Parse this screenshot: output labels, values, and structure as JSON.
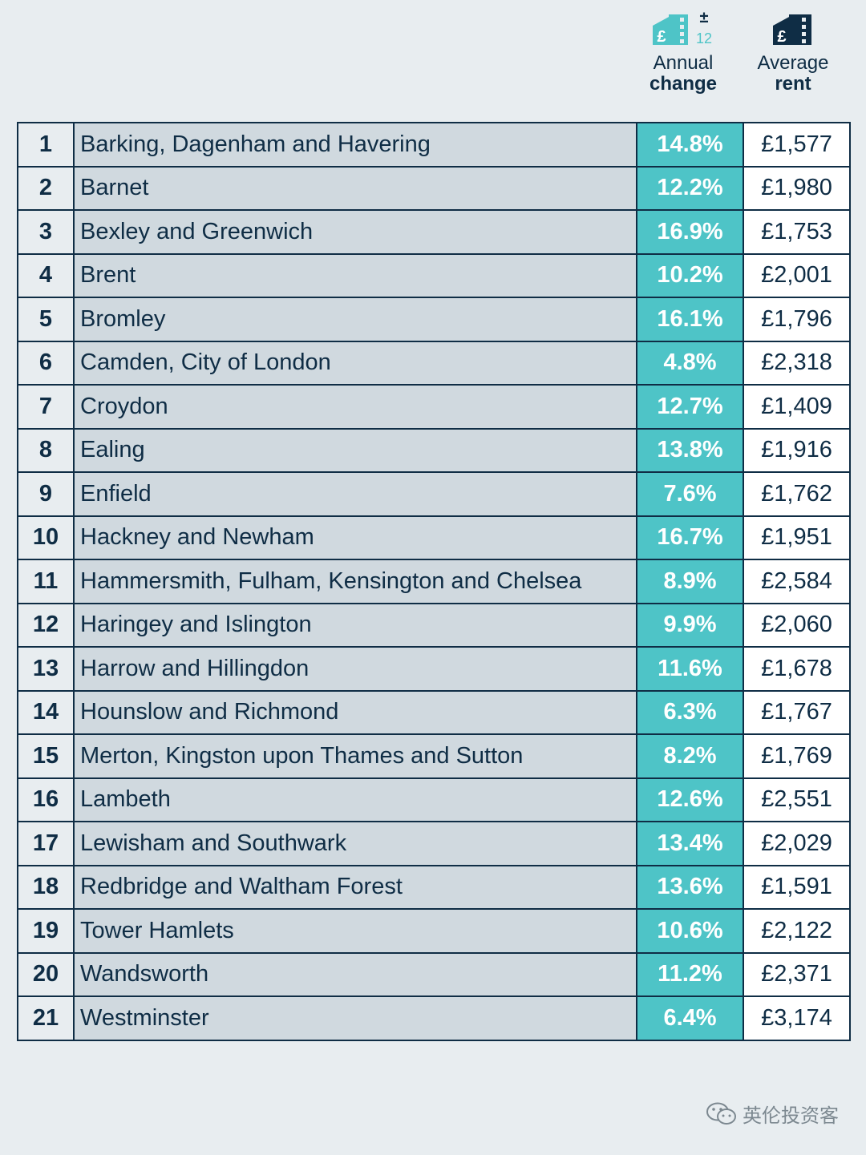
{
  "header": {
    "annual_change": {
      "line1": "Annual",
      "line2": "change",
      "icon_plus_minus": "±",
      "icon_months": "12",
      "icon": "building-pound-change-icon"
    },
    "average_rent": {
      "line1": "Average",
      "line2": "rent",
      "icon": "building-pound-icon"
    }
  },
  "colors": {
    "teal": "#4ec4c7",
    "navy": "#0f2d45",
    "row_grey": "#d0d9df",
    "background": "#e8edf0"
  },
  "rows": [
    {
      "rank": "1",
      "area": "Barking, Dagenham and Havering",
      "change": "14.8%",
      "rent": "£1,577"
    },
    {
      "rank": "2",
      "area": "Barnet",
      "change": "12.2%",
      "rent": "£1,980"
    },
    {
      "rank": "3",
      "area": "Bexley and Greenwich",
      "change": "16.9%",
      "rent": "£1,753"
    },
    {
      "rank": "4",
      "area": "Brent",
      "change": "10.2%",
      "rent": "£2,001"
    },
    {
      "rank": "5",
      "area": "Bromley",
      "change": "16.1%",
      "rent": "£1,796"
    },
    {
      "rank": "6",
      "area": "Camden, City of London",
      "change": "4.8%",
      "rent": "£2,318"
    },
    {
      "rank": "7",
      "area": "Croydon",
      "change": "12.7%",
      "rent": "£1,409"
    },
    {
      "rank": "8",
      "area": "Ealing",
      "change": "13.8%",
      "rent": "£1,916"
    },
    {
      "rank": "9",
      "area": "Enfield",
      "change": "7.6%",
      "rent": "£1,762"
    },
    {
      "rank": "10",
      "area": "Hackney and Newham",
      "change": "16.7%",
      "rent": "£1,951"
    },
    {
      "rank": "11",
      "area": "Hammersmith, Fulham, Kensington and Chelsea",
      "change": "8.9%",
      "rent": "£2,584"
    },
    {
      "rank": "12",
      "area": "Haringey and Islington",
      "change": "9.9%",
      "rent": "£2,060"
    },
    {
      "rank": "13",
      "area": "Harrow and Hillingdon",
      "change": "11.6%",
      "rent": "£1,678"
    },
    {
      "rank": "14",
      "area": "Hounslow and Richmond",
      "change": "6.3%",
      "rent": "£1,767"
    },
    {
      "rank": "15",
      "area": "Merton, Kingston upon Thames and Sutton",
      "change": "8.2%",
      "rent": "£1,769"
    },
    {
      "rank": "16",
      "area": "Lambeth",
      "change": "12.6%",
      "rent": "£2,551"
    },
    {
      "rank": "17",
      "area": "Lewisham and Southwark",
      "change": "13.4%",
      "rent": "£2,029"
    },
    {
      "rank": "18",
      "area": "Redbridge and Waltham Forest",
      "change": "13.6%",
      "rent": "£1,591"
    },
    {
      "rank": "19",
      "area": "Tower Hamlets",
      "change": "10.6%",
      "rent": "£2,122"
    },
    {
      "rank": "20",
      "area": "Wandsworth",
      "change": "11.2%",
      "rent": "£2,371"
    },
    {
      "rank": "21",
      "area": "Westminster",
      "change": "6.4%",
      "rent": "£3,174"
    }
  ],
  "watermark": {
    "text": "英伦投资客",
    "icon": "wechat-icon"
  }
}
